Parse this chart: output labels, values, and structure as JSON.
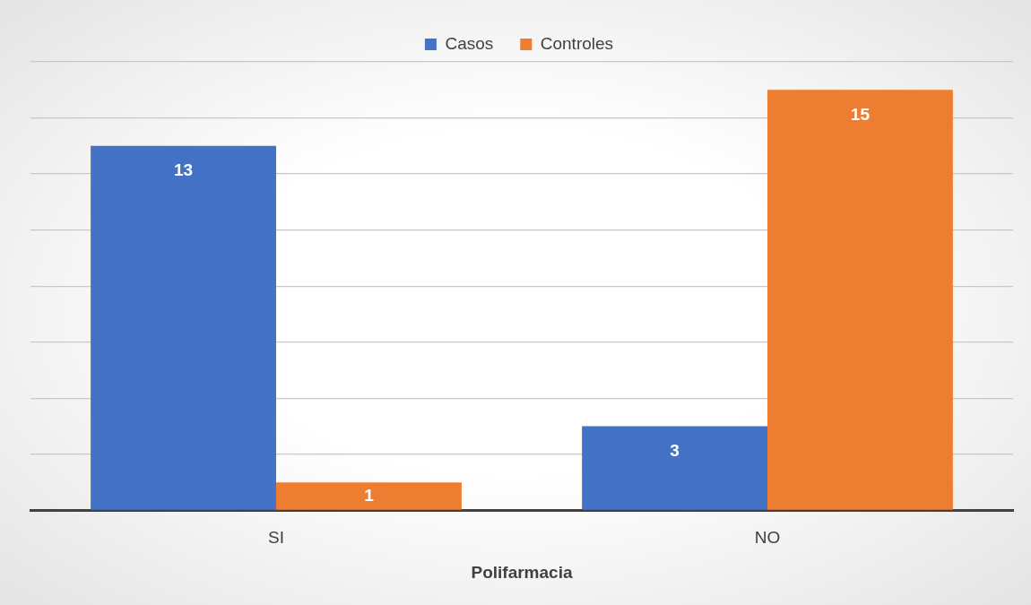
{
  "chart_data": {
    "type": "bar",
    "xlabel": "Polifarmacia",
    "categories": [
      "SI",
      "NO"
    ],
    "series": [
      {
        "name": "Casos",
        "color": "#4472c4",
        "values": [
          13,
          3
        ]
      },
      {
        "name": "Controles",
        "color": "#ed7d31",
        "values": [
          1,
          15
        ]
      }
    ],
    "ylim": [
      0,
      16
    ],
    "yticks": [
      {
        "value": 0,
        "label": null
      },
      {
        "value": 2,
        "label": null
      },
      {
        "value": 4,
        "label": null
      },
      {
        "value": 6,
        "label": null
      },
      {
        "value": 8,
        "label": null
      },
      {
        "value": 10,
        "label": null
      },
      {
        "value": 12,
        "label": null
      },
      {
        "value": 14,
        "label": null
      },
      {
        "value": 16,
        "label": null
      }
    ],
    "grid": "y",
    "legend": "top",
    "data_labels": true
  }
}
